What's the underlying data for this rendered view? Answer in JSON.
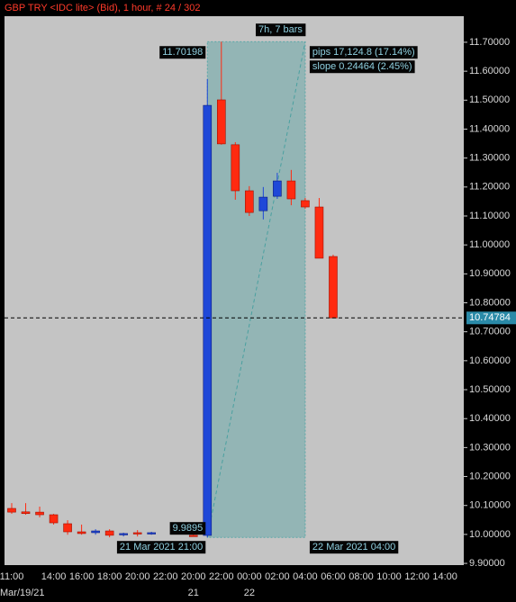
{
  "chart_data": {
    "type": "candlestick",
    "title": "GBP TRY <IDC lite> (Bid), 1 hour, # 24 / 302",
    "categories": [
      "11:00",
      null,
      null,
      "14:00",
      null,
      "16:00",
      null,
      "18:00",
      null,
      "20:00",
      null,
      "22:00",
      null,
      "20:00",
      null,
      "22:00",
      null,
      "00:00",
      null,
      "02:00",
      null,
      "04:00",
      null,
      "06:00",
      null,
      "08:00",
      null,
      "10:00",
      null,
      "12:00",
      null,
      "14:00"
    ],
    "dates": [
      "Mar/19/21",
      null,
      null,
      null,
      null,
      null,
      null,
      null,
      null,
      null,
      null,
      null,
      null,
      "21",
      null,
      null,
      null,
      "22",
      null,
      null,
      null,
      null,
      null,
      null,
      null,
      null,
      null,
      null,
      null,
      null,
      null,
      null
    ],
    "open": [
      10.0898,
      10.078,
      10.077,
      10.068,
      10.037,
      10.009,
      10.006,
      10.012,
      9.999,
      10.006,
      10.003,
      null,
      null,
      9.997,
      9.9965,
      11.501,
      11.346,
      11.187,
      11.118,
      11.168,
      11.221,
      11.153,
      11.131,
      10.96,
      null,
      null,
      null,
      null,
      null,
      null,
      null,
      null
    ],
    "high": [
      10.108,
      10.108,
      10.096,
      10.071,
      10.049,
      10.034,
      10.018,
      10.018,
      10.006,
      10.015,
      10.009,
      null,
      null,
      10.0,
      11.573,
      11.70198,
      11.355,
      11.203,
      11.2,
      11.249,
      11.259,
      11.162,
      11.162,
      10.966,
      null,
      null,
      null,
      null,
      null,
      null,
      null,
      null
    ],
    "low": [
      10.071,
      10.068,
      10.059,
      10.034,
      9.999,
      9.999,
      9.999,
      9.99,
      9.993,
      9.993,
      9.999,
      null,
      null,
      9.993,
      9.9895,
      11.346,
      11.156,
      11.1,
      11.088,
      11.159,
      11.137,
      11.125,
      10.954,
      10.74784,
      null,
      null,
      null,
      null,
      null,
      null,
      null,
      null
    ],
    "close": [
      10.077,
      10.072,
      10.068,
      10.04,
      10.009,
      10.003,
      10.012,
      9.997,
      10.003,
      10.003,
      10.006,
      null,
      null,
      9.995,
      11.482,
      11.349,
      11.187,
      11.112,
      11.165,
      11.221,
      11.159,
      11.131,
      10.954,
      10.74784,
      null,
      null,
      null,
      null,
      null,
      null,
      null,
      null
    ],
    "up_color": "#1f48d8",
    "down_color": "#ff2a10",
    "current_price": 10.74784,
    "ylim": [
      9.894,
      11.79
    ],
    "yticks": [
      {
        "value": 9.9,
        "label": "9.90000"
      },
      {
        "value": 10.0,
        "label": "10.00000"
      },
      {
        "value": 10.1,
        "label": "10.10000"
      },
      {
        "value": 10.2,
        "label": "10.20000"
      },
      {
        "value": 10.3,
        "label": "10.30000"
      },
      {
        "value": 10.4,
        "label": "10.40000"
      },
      {
        "value": 10.5,
        "label": "10.50000"
      },
      {
        "value": 10.6,
        "label": "10.60000"
      },
      {
        "value": 10.7,
        "label": "10.70000"
      },
      {
        "value": 10.8,
        "label": "10.80000"
      },
      {
        "value": 10.9,
        "label": "10.90000"
      },
      {
        "value": 11.0,
        "label": "11.00000"
      },
      {
        "value": 11.1,
        "label": "11.10000"
      },
      {
        "value": 11.2,
        "label": "11.20000"
      },
      {
        "value": 11.3,
        "label": "11.30000"
      },
      {
        "value": 11.4,
        "label": "11.40000"
      },
      {
        "value": 11.5,
        "label": "11.50000"
      },
      {
        "value": 11.6,
        "label": "11.60000"
      },
      {
        "value": 11.7,
        "label": "11.70000"
      }
    ],
    "annotations": {
      "high": "11.70198",
      "bars": "7h, 7 bars",
      "pips": "pips 17,124.8 (17.14%)",
      "slope": "slope 0.24464 (2.45%)",
      "low": "9.9895",
      "start": "21 Mar 2021 21:00",
      "end": "22 Mar 2021 04:00"
    }
  }
}
